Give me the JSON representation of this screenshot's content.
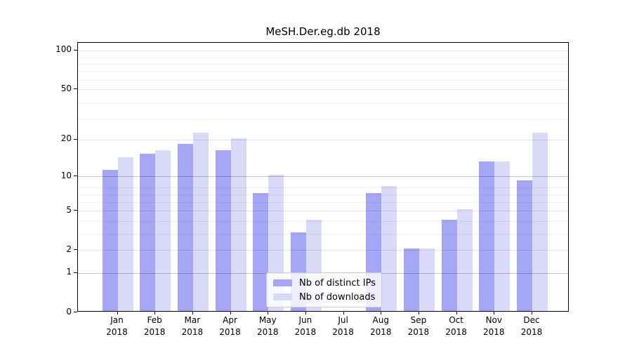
{
  "title": "MeSH.Der.eg.db 2018",
  "chart_data": {
    "type": "bar",
    "title": "MeSH.Der.eg.db 2018",
    "categories": [
      "Jan",
      "Feb",
      "Mar",
      "Apr",
      "May",
      "Jun",
      "Jul",
      "Aug",
      "Sep",
      "Oct",
      "Nov",
      "Dec"
    ],
    "year_label": "2018",
    "series": [
      {
        "name": "Nb of distinct IPs",
        "color": "#a6a6f6",
        "values": [
          11,
          15,
          18,
          16,
          7,
          3,
          0,
          7,
          2,
          4,
          13,
          9
        ]
      },
      {
        "name": "Nb of downloads",
        "color": "#d9d9f8",
        "values": [
          14,
          16,
          22,
          20,
          10,
          4,
          0,
          8,
          2,
          5,
          13,
          22
        ]
      }
    ],
    "y_axis": {
      "scale": "log1p",
      "ticks": [
        0,
        1,
        2,
        5,
        10,
        20,
        50,
        100
      ],
      "strong_gridlines": [
        1,
        10
      ],
      "medium_gridlines": [
        2,
        5,
        20,
        50,
        100
      ],
      "minor_gridlines": [
        3,
        4,
        6,
        7,
        8,
        29,
        39,
        59,
        69,
        79,
        89
      ],
      "ylim": [
        0,
        114
      ]
    },
    "grid": true,
    "legend_position": "lower-center-inside",
    "bar_colors": {
      "distinct_ips": "#a6a6f6",
      "downloads": "#d9d9f8"
    }
  }
}
